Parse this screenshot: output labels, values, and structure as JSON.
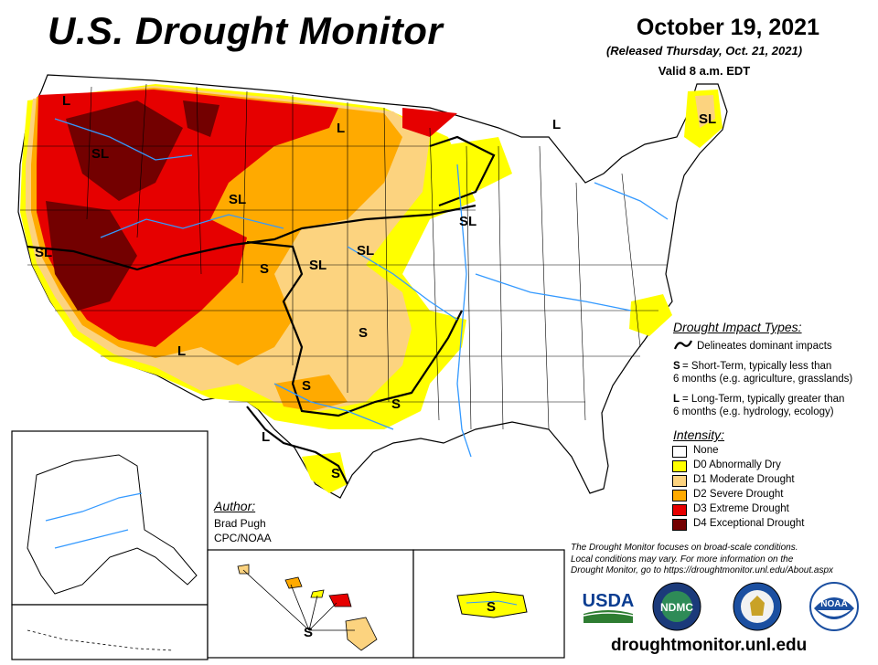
{
  "header": {
    "title": "U.S. Drought Monitor",
    "date": "October 19, 2021",
    "released": "(Released Thursday, Oct. 21, 2021)",
    "valid": "Valid 8 a.m. EDT"
  },
  "colors": {
    "none": "#ffffff",
    "d0": "#ffff00",
    "d1": "#fcd37f",
    "d2": "#ffaa00",
    "d3": "#e60000",
    "d4": "#730000",
    "rivers": "#3399ff",
    "borders": "#000000"
  },
  "map_labels": [
    "L",
    "SL",
    "SL",
    "L",
    "L",
    "SL",
    "SL",
    "SL",
    "S",
    "SL",
    "SL",
    "S",
    "L",
    "S",
    "S",
    "L",
    "S",
    "SL",
    "S",
    "S"
  ],
  "impact_types": {
    "heading": "Drought Impact Types:",
    "delineates": "Delineates dominant impacts",
    "short_term_key": "S",
    "short_term_1": "= Short-Term, typically less than",
    "short_term_2": "6 months (e.g. agriculture, grasslands)",
    "long_term_key": "L",
    "long_term_1": "= Long-Term, typically greater than",
    "long_term_2": "6 months (e.g. hydrology, ecology)"
  },
  "intensity": {
    "heading": "Intensity:",
    "items": [
      {
        "label": "None",
        "color": "#ffffff"
      },
      {
        "label": "D0 Abnormally Dry",
        "color": "#ffff00"
      },
      {
        "label": "D1 Moderate Drought",
        "color": "#fcd37f"
      },
      {
        "label": "D2 Severe Drought",
        "color": "#ffaa00"
      },
      {
        "label": "D3 Extreme Drought",
        "color": "#e60000"
      },
      {
        "label": "D4 Exceptional Drought",
        "color": "#730000"
      }
    ]
  },
  "author": {
    "heading": "Author:",
    "name": "Brad Pugh",
    "org": "CPC/NOAA"
  },
  "disclaimer": {
    "line1": "The Drought Monitor focuses on broad-scale conditions.",
    "line2": "Local conditions may vary. For more information on the",
    "line3": "Drought Monitor, go to https://droughtmonitor.unl.edu/About.aspx"
  },
  "logos": {
    "usda": "USDA",
    "ndmc": "NDMC",
    "noaa": "NOAA"
  },
  "footer": {
    "url": "droughtmonitor.unl.edu"
  }
}
